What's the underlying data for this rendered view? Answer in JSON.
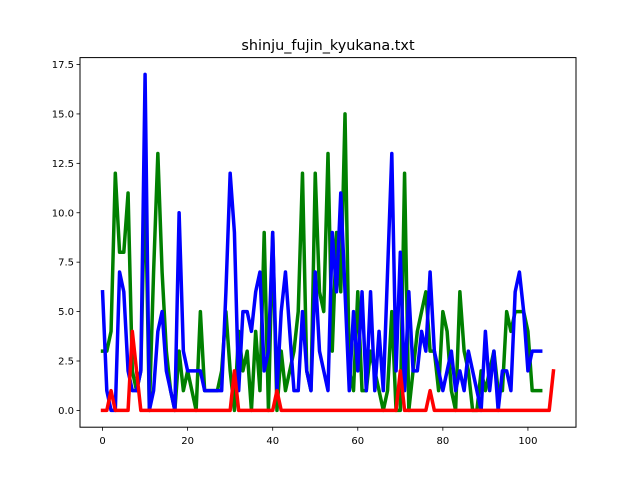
{
  "chart_data": {
    "type": "line",
    "title": "shinju_fujin_kyukana.txt",
    "xlabel": "",
    "ylabel": "",
    "xlim": [
      -5.3,
      111.3
    ],
    "ylim": [
      -0.85,
      17.85
    ],
    "xticks": [
      0,
      20,
      40,
      60,
      80,
      100
    ],
    "xtick_labels": [
      "0",
      "20",
      "40",
      "60",
      "80",
      "100"
    ],
    "yticks": [
      0,
      2.5,
      5,
      7.5,
      10,
      12.5,
      15,
      17.5
    ],
    "ytick_labels": [
      "0.0",
      "2.5",
      "5.0",
      "7.5",
      "10.0",
      "12.5",
      "15.0",
      "17.5"
    ],
    "grid": false,
    "legend": "none",
    "series": [
      {
        "color": "#008000",
        "x": [
          0,
          1,
          2,
          3,
          4,
          5,
          6,
          7,
          8,
          9,
          10,
          11,
          12,
          13,
          14,
          15,
          16,
          17,
          18,
          19,
          20,
          21,
          22,
          23,
          24,
          25,
          26,
          27,
          28,
          29,
          30,
          31,
          32,
          33,
          34,
          35,
          36,
          37,
          38,
          39,
          40,
          41,
          42,
          43,
          44,
          45,
          46,
          47,
          48,
          49,
          50,
          51,
          52,
          53,
          54,
          55,
          56,
          57,
          58,
          59,
          60,
          61,
          62,
          63,
          64,
          65,
          66,
          67,
          68,
          69,
          70,
          71,
          72,
          73,
          74,
          75,
          76,
          77,
          78,
          79,
          80,
          81,
          82,
          83,
          84,
          85,
          86,
          87,
          88,
          89,
          90,
          91,
          92,
          93,
          94,
          95,
          96,
          97,
          98,
          99,
          100,
          101,
          102,
          103
        ],
        "values": [
          3,
          3,
          4,
          12,
          8,
          8,
          11,
          2,
          1,
          2,
          12,
          0,
          7,
          13,
          7,
          3,
          1,
          0,
          3,
          1,
          2,
          1,
          0,
          5,
          1,
          1,
          1,
          1,
          2,
          5,
          2,
          0,
          4,
          2,
          3,
          0,
          4,
          1,
          9,
          0,
          9,
          0,
          3,
          1,
          2,
          3,
          5,
          12,
          2,
          1,
          12,
          6,
          5,
          13,
          3,
          9,
          6,
          15,
          2,
          1,
          6,
          1,
          1,
          3,
          2,
          1,
          0,
          1,
          5,
          0,
          0,
          12,
          0,
          2,
          4,
          5,
          6,
          3,
          3,
          1,
          5,
          4,
          1,
          0,
          6,
          3,
          2,
          0,
          0,
          2,
          1,
          2,
          3,
          1,
          1,
          5,
          4,
          5,
          5,
          5,
          4,
          1,
          1,
          1
        ],
        "y_note": ""
      },
      {
        "color": "#0000ff",
        "x": [
          0,
          1,
          2,
          3,
          4,
          5,
          6,
          7,
          8,
          9,
          10,
          11,
          12,
          13,
          14,
          15,
          16,
          17,
          18,
          19,
          20,
          21,
          22,
          23,
          24,
          25,
          26,
          27,
          28,
          29,
          30,
          31,
          32,
          33,
          34,
          35,
          36,
          37,
          38,
          39,
          40,
          41,
          42,
          43,
          44,
          45,
          46,
          47,
          48,
          49,
          50,
          51,
          52,
          53,
          54,
          55,
          56,
          57,
          58,
          59,
          60,
          61,
          62,
          63,
          64,
          65,
          66,
          67,
          68,
          69,
          70,
          71,
          72,
          73,
          74,
          75,
          76,
          77,
          78,
          79,
          80,
          81,
          82,
          83,
          84,
          85,
          86,
          87,
          88,
          89,
          90,
          91,
          92,
          93,
          94,
          95,
          96,
          97,
          98,
          99,
          100,
          101,
          102,
          103
        ],
        "values": [
          6,
          1,
          0,
          0,
          7,
          6,
          2,
          1,
          1,
          2,
          17,
          0,
          1,
          4,
          5,
          2,
          1,
          0,
          10,
          3,
          2,
          2,
          2,
          2,
          1,
          1,
          1,
          1,
          1,
          6,
          12,
          9,
          1,
          5,
          5,
          4,
          6,
          7,
          2,
          3,
          9,
          1,
          5,
          7,
          4,
          1,
          1,
          5,
          2,
          1,
          7,
          3,
          2,
          1,
          9,
          6,
          11,
          6,
          1,
          5,
          2,
          6,
          1,
          6,
          1,
          4,
          1,
          7,
          13,
          2,
          8,
          1,
          6,
          2,
          2,
          4,
          3,
          7,
          3,
          2,
          1,
          2,
          3,
          1,
          2,
          1,
          3,
          2,
          1,
          0,
          4,
          1,
          3,
          0,
          2,
          2,
          1,
          6,
          7,
          5,
          2,
          3,
          3,
          3
        ],
        "y_note": ""
      },
      {
        "color": "#ff0000",
        "x": [
          0,
          1,
          2,
          3,
          4,
          5,
          6,
          7,
          8,
          9,
          10,
          11,
          12,
          13,
          14,
          15,
          16,
          17,
          18,
          19,
          20,
          21,
          22,
          23,
          24,
          25,
          26,
          27,
          28,
          29,
          30,
          31,
          32,
          33,
          34,
          35,
          36,
          37,
          38,
          39,
          40,
          41,
          42,
          43,
          44,
          45,
          46,
          47,
          48,
          49,
          50,
          51,
          52,
          53,
          54,
          55,
          56,
          57,
          58,
          59,
          60,
          61,
          62,
          63,
          64,
          65,
          66,
          67,
          68,
          69,
          70,
          71,
          72,
          73,
          74,
          75,
          76,
          77,
          78,
          79,
          80,
          81,
          82,
          83,
          84,
          85,
          86,
          87,
          88,
          89,
          90,
          91,
          92,
          93,
          94,
          95,
          96,
          97,
          98,
          99,
          100,
          101,
          102,
          103,
          104,
          105,
          106
        ],
        "values": [
          0,
          0,
          1,
          0,
          0,
          0,
          0,
          4,
          2,
          0,
          0,
          0,
          0,
          0,
          0,
          0,
          0,
          0,
          0,
          0,
          0,
          0,
          0,
          0,
          0,
          0,
          0,
          0,
          0,
          0,
          0,
          2,
          0,
          0,
          0,
          0,
          0,
          0,
          0,
          0,
          0,
          1,
          0,
          0,
          0,
          0,
          0,
          0,
          0,
          0,
          0,
          0,
          0,
          0,
          0,
          0,
          0,
          0,
          0,
          0,
          0,
          0,
          0,
          0,
          0,
          0,
          0,
          0,
          0,
          0,
          2,
          0,
          0,
          0,
          0,
          0,
          0,
          1,
          0,
          0,
          0,
          0,
          0,
          0,
          0,
          0,
          0,
          0,
          0,
          0,
          0,
          0,
          0,
          0,
          0,
          0,
          0,
          0,
          0,
          0,
          0,
          0,
          0,
          0,
          0,
          0,
          2
        ]
      }
    ]
  }
}
